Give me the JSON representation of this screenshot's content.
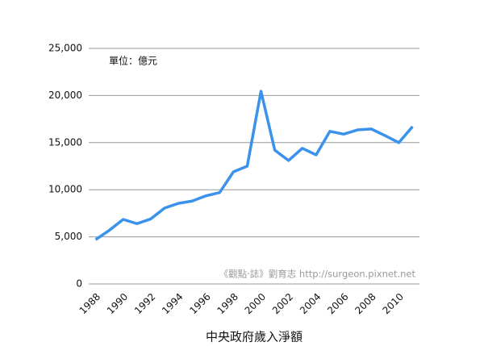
{
  "chart_data": {
    "type": "line",
    "x_label": "中央政府歲入淨額",
    "annotations": [
      "單位：億元",
      "《觀點‧誌》劉育志 http://surgeon.pixnet.net"
    ],
    "categories": [
      "1988",
      null,
      "1990",
      null,
      "1992",
      null,
      "1994",
      null,
      "1996",
      null,
      "1998",
      null,
      "2000",
      null,
      "2002",
      null,
      "2004",
      null,
      "2006",
      null,
      "2008",
      null,
      "2010",
      null
    ],
    "series": [
      {
        "name": "中央政府歲入淨額",
        "color": "#3a92ea",
        "values": [
          4700,
          5700,
          6850,
          6400,
          6900,
          8050,
          8550,
          8800,
          9350,
          9700,
          11900,
          12500,
          20450,
          14200,
          13100,
          14400,
          13700,
          16200,
          15900,
          16350,
          16450,
          15750,
          15000,
          16700
        ]
      }
    ],
    "ylim": [
      0,
      25000
    ],
    "yticks": [
      0,
      {
        "value": 5000,
        "label": "5,000"
      },
      {
        "value": 10000,
        "label": "10,000"
      },
      {
        "value": 15000,
        "label": "15,000"
      },
      {
        "value": 20000,
        "label": "20,000"
      },
      {
        "value": 25000,
        "label": "25,000"
      }
    ],
    "grid": true
  }
}
